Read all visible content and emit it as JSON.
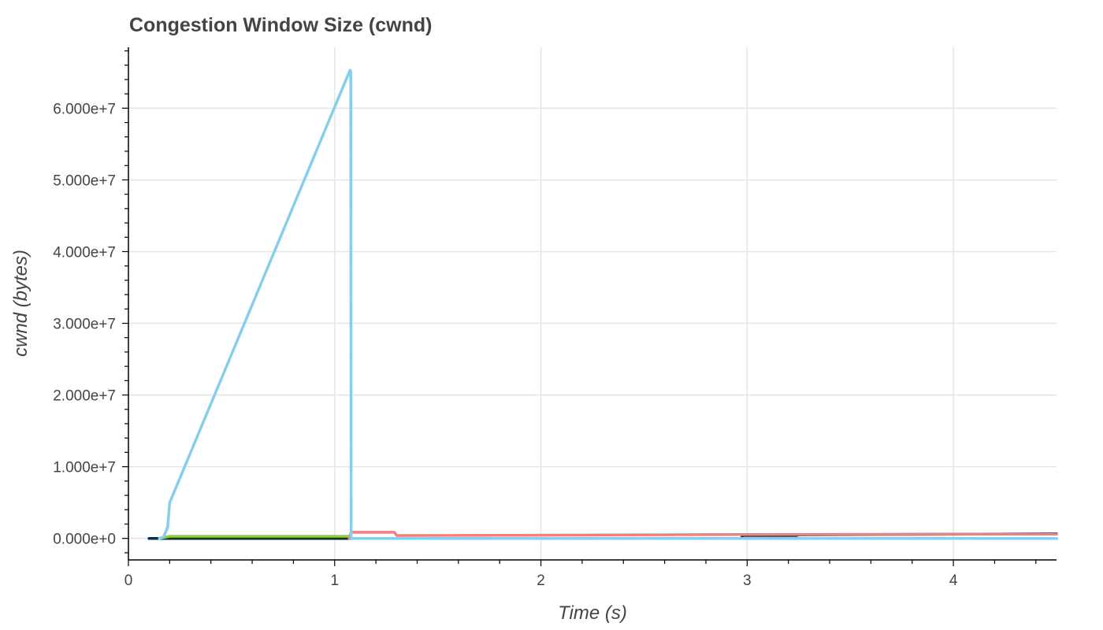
{
  "chart_data": {
    "type": "line",
    "title": "Congestion Window Size (cwnd)",
    "xlabel": "Time (s)",
    "ylabel": "cwnd (bytes)",
    "xlim": [
      0,
      4.5
    ],
    "ylim": [
      -3000000,
      68500000
    ],
    "x_ticks": [
      0,
      1,
      2,
      3,
      4
    ],
    "x_tick_labels": [
      "0",
      "1",
      "2",
      "3",
      "4"
    ],
    "y_ticks": [
      0,
      10000000,
      20000000,
      30000000,
      40000000,
      50000000,
      60000000
    ],
    "y_tick_labels": [
      "0.000e+0",
      "1.000e+7",
      "2.000e+7",
      "3.000e+7",
      "4.000e+7",
      "5.000e+7",
      "6.000e+7"
    ],
    "grid": true,
    "legend": "none",
    "series": [
      {
        "color": "#2b6cb0",
        "x": [
          0.1,
          4.5
        ],
        "y": [
          0,
          0
        ]
      },
      {
        "color": "#0b2e4f",
        "x": [
          0.1,
          2.97,
          2.98,
          3.24,
          3.25,
          4.5
        ],
        "y": [
          0,
          0,
          400000,
          400000,
          500000,
          650000
        ]
      },
      {
        "color": "#9acd32",
        "x": [
          0.15,
          0.2,
          1.07,
          1.08
        ],
        "y": [
          0,
          300000,
          300000,
          0
        ]
      },
      {
        "color": "#f08080",
        "x": [
          1.07,
          1.08,
          1.29,
          1.3,
          2.0,
          3.0,
          4.5
        ],
        "y": [
          0,
          850000,
          850000,
          400000,
          450000,
          550000,
          600000
        ]
      },
      {
        "color": "#87ceeb",
        "x": [
          0.15,
          0.17,
          0.19,
          0.2,
          1.07,
          1.075,
          1.078,
          1.08,
          4.5
        ],
        "y": [
          0,
          200000,
          1500000,
          5000000,
          65000000,
          65300000,
          65000000,
          0,
          0
        ]
      }
    ]
  }
}
